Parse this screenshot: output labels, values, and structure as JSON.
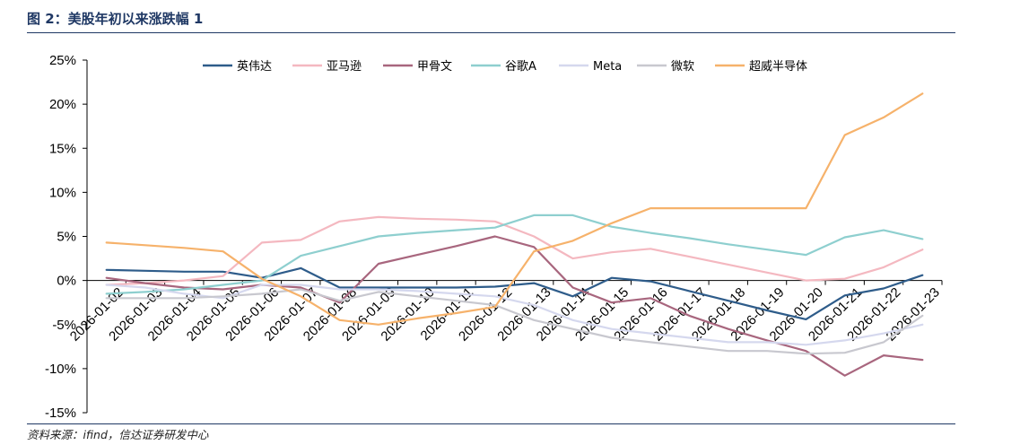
{
  "title": "图 2：美股年初以来涨跌幅 1",
  "source": "资料来源：ifind，信达证券研发中心",
  "chart_data": {
    "type": "line",
    "x": [
      "2026-01-02",
      "2026-01-03",
      "2026-01-04",
      "2026-01-05",
      "2026-01-06",
      "2026-01-07",
      "2026-01-08",
      "2026-01-09",
      "2026-01-10",
      "2026-01-11",
      "2026-01-12",
      "2026-01-13",
      "2026-01-14",
      "2026-01-15",
      "2026-01-16",
      "2026-01-17",
      "2026-01-18",
      "2026-01-19",
      "2026-01-20",
      "2026-01-21",
      "2026-01-22",
      "2026-01-23"
    ],
    "ylim": [
      -15,
      25
    ],
    "yticks": [
      -15,
      -10,
      -5,
      0,
      5,
      10,
      15,
      20,
      25
    ],
    "yticklabels": [
      "-15%",
      "-10%",
      "-5%",
      "0%",
      "5%",
      "10%",
      "15%",
      "20%",
      "25%"
    ],
    "legend_position": "top",
    "grid": false,
    "series": [
      {
        "name": "英伟达",
        "color": "#2e5c8a",
        "values": [
          1.2,
          1.1,
          1.0,
          1.0,
          0.3,
          1.4,
          -0.8,
          -0.8,
          -0.8,
          -0.8,
          -0.7,
          -0.3,
          -1.8,
          0.3,
          -0.1,
          -1.2,
          -2.3,
          -3.4,
          -4.4,
          -1.7,
          -0.9,
          0.6
        ]
      },
      {
        "name": "亚马逊",
        "color": "#f4b8c0",
        "values": [
          -0.5,
          -0.3,
          0.0,
          0.5,
          4.3,
          4.6,
          6.7,
          7.2,
          7.0,
          6.9,
          6.7,
          5.0,
          2.5,
          3.2,
          3.6,
          2.7,
          1.8,
          0.9,
          0.0,
          0.2,
          1.5,
          3.5
        ]
      },
      {
        "name": "甲骨文",
        "color": "#a8667e",
        "values": [
          0.3,
          -0.3,
          -0.8,
          -1.0,
          -0.5,
          -0.8,
          -2.5,
          1.9,
          2.9,
          3.9,
          5.0,
          3.8,
          -0.8,
          -2.5,
          -2.0,
          -4.0,
          -5.5,
          -6.8,
          -8.0,
          -10.8,
          -8.5,
          -9.0
        ]
      },
      {
        "name": "谷歌A",
        "color": "#8ecfcf",
        "values": [
          -1.5,
          -1.3,
          -1.0,
          -0.5,
          0.0,
          2.8,
          3.9,
          5.0,
          5.4,
          5.7,
          6.0,
          7.4,
          7.4,
          6.1,
          5.4,
          4.8,
          4.1,
          3.5,
          2.9,
          4.9,
          5.7,
          4.7
        ]
      },
      {
        "name": "Meta",
        "color": "#d5d8ee",
        "values": [
          -0.5,
          -0.8,
          -1.5,
          -2.0,
          -0.5,
          -0.5,
          -1.0,
          -1.0,
          -1.2,
          -1.5,
          -1.8,
          -2.8,
          -4.5,
          -5.5,
          -6.0,
          -6.5,
          -7.0,
          -7.0,
          -7.3,
          -6.8,
          -6.0,
          -5.0
        ]
      },
      {
        "name": "微软",
        "color": "#c8c8cf",
        "values": [
          -2.0,
          -2.0,
          -2.0,
          -1.8,
          -1.5,
          -1.0,
          -2.3,
          -1.3,
          -1.8,
          -2.3,
          -2.8,
          -4.5,
          -5.5,
          -6.5,
          -7.0,
          -7.5,
          -8.0,
          -8.0,
          -8.3,
          -8.2,
          -7.0,
          -4.0
        ]
      },
      {
        "name": "超威半导体",
        "color": "#f6b26b",
        "values": [
          4.3,
          4.0,
          3.7,
          3.3,
          0.2,
          -1.8,
          -4.5,
          -5.0,
          -4.3,
          -3.7,
          -3.0,
          3.3,
          4.5,
          6.5,
          8.2,
          8.2,
          8.2,
          8.2,
          8.2,
          16.5,
          18.5,
          21.2
        ]
      }
    ]
  }
}
